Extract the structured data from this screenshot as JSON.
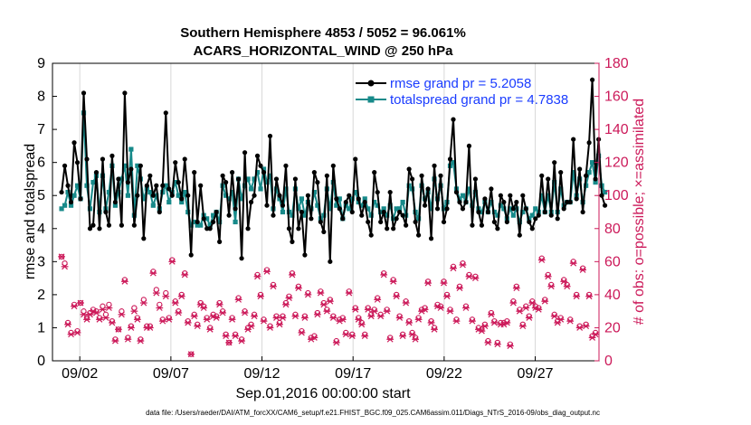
{
  "chart_data": {
    "type": "line",
    "title_line1": "Southern Hemisphere 4853 / 5052 = 96.061%",
    "title_line2": "ACARS_HORIZONTAL_WIND @ 250 hPa",
    "xlabel": "Sep.01,2016 00:00:00 start",
    "ylabel_left": "rmse and totalspread",
    "ylabel_right": "# of obs: o=possible; ×=assimilated",
    "footnote": "data file: /Users/raeder/DAI/ATM_forcXX/CAM6_setup/f.e21.FHIST_BGC.f09_025.CAM6assim.011/Diags_NTrS_2016-09/obs_diag_output.nc",
    "xlim": [
      0.5,
      30.5
    ],
    "ylim_left": [
      0,
      9
    ],
    "ylim_right": [
      0,
      180
    ],
    "yticks_left": [
      "0",
      "1",
      "2",
      "3",
      "4",
      "5",
      "6",
      "7",
      "8",
      "9"
    ],
    "yticks_right": [
      "0",
      "20",
      "40",
      "60",
      "80",
      "100",
      "120",
      "140",
      "160",
      "180"
    ],
    "xtick_positions": [
      2,
      7,
      12,
      17,
      22,
      27
    ],
    "xtick_labels": [
      "09/02",
      "09/07",
      "09/12",
      "09/17",
      "09/22",
      "09/27"
    ],
    "colors": {
      "rmse": "#000000",
      "spread": "#178a8a",
      "obs": "#cc1a5a",
      "legend_text": "#1a3cff",
      "right_axis": "#cc1a5a"
    },
    "series": [
      {
        "name": "rmse",
        "legend": "rmse grand pr = 5.2058",
        "values": [
          5.1,
          5.9,
          5.3,
          4.8,
          6.6,
          6.0,
          4.9,
          8.1,
          6.1,
          4.0,
          4.1,
          5.7,
          4.0,
          6.1,
          4.5,
          4.1,
          6.2,
          4.8,
          5.5,
          4.1,
          8.1,
          5.4,
          5.8,
          4.1,
          5.0,
          5.9,
          3.7,
          5.3,
          5.6,
          5.0,
          5.3,
          4.5,
          5.3,
          7.5,
          5.2,
          5.0,
          6.0,
          5.4,
          4.9,
          6.1,
          5.0,
          3.2,
          5.7,
          4.2,
          5.3,
          4.3,
          4.0,
          4.0,
          4.2,
          4.5,
          3.6,
          5.6,
          5.4,
          4.4,
          5.7,
          4.6,
          5.5,
          3.1,
          6.3,
          4.0,
          4.8,
          5.0,
          6.2,
          5.9,
          5.7,
          4.7,
          6.8,
          4.4,
          5.5,
          5.0,
          4.7,
          5.9,
          4.0,
          3.6,
          5.5,
          4.0,
          4.5,
          3.2,
          5.0,
          4.3,
          5.7,
          5.4,
          4.2,
          3.9,
          5.6,
          3.0,
          5.9,
          4.9,
          4.6,
          4.3,
          4.8,
          5.0,
          4.5,
          6.1,
          4.9,
          4.4,
          4.8,
          4.2,
          3.8,
          5.7,
          5.1,
          4.2,
          4.5,
          4.0,
          5.1,
          4.0,
          4.3,
          4.5,
          4.4,
          4.1,
          5.8,
          5.5,
          4.2,
          3.8,
          5.6,
          4.7,
          5.2,
          3.7,
          5.9,
          4.6,
          5.6,
          4.2,
          4.6,
          6.1,
          7.3,
          5.1,
          4.8,
          4.6,
          4.8,
          6.5,
          4.1,
          5.5,
          4.5,
          4.1,
          4.9,
          4.5,
          5.2,
          4.2,
          4.0,
          5.0,
          4.8,
          4.2,
          5.0,
          4.6,
          4.8,
          3.8,
          5.0,
          4.6,
          4.2,
          4.0,
          4.3,
          4.4,
          5.6,
          4.5,
          5.5,
          4.4,
          6.0,
          4.3,
          5.7,
          4.6,
          4.8,
          4.8,
          6.7,
          4.9,
          5.8,
          4.5,
          5.6,
          6.6,
          8.5,
          5.5,
          6.7,
          5.0,
          4.7
        ]
      },
      {
        "name": "totalspread",
        "legend": "totalspread grand pr = 4.7838",
        "values": [
          4.6,
          4.7,
          5.1,
          4.7,
          5.0,
          5.3,
          4.9,
          7.5,
          5.3,
          4.6,
          5.4,
          5.6,
          4.5,
          5.6,
          4.6,
          5.1,
          5.9,
          4.7,
          5.1,
          5.5,
          5.9,
          5.0,
          6.4,
          4.4,
          5.9,
          5.5,
          4.9,
          5.2,
          5.1,
          4.7,
          5.0,
          4.6,
          5.1,
          5.3,
          4.8,
          5.1,
          5.4,
          5.0,
          4.8,
          5.1,
          4.5,
          4.1,
          4.2,
          4.1,
          4.1,
          4.4,
          4.3,
          4.1,
          4.4,
          4.5,
          4.2,
          5.3,
          5.0,
          4.9,
          5.1,
          4.2,
          5.5,
          4.9,
          5.3,
          5.5,
          5.2,
          5.5,
          5.7,
          5.2,
          5.8,
          5.4,
          5.6,
          4.6,
          5.2,
          4.9,
          4.5,
          5.2,
          4.5,
          4.4,
          5.2,
          4.6,
          4.9,
          4.4,
          4.8,
          4.6,
          5.1,
          4.7,
          4.3,
          4.4,
          5.2,
          4.6,
          5.4,
          4.7,
          4.9,
          4.3,
          4.7,
          4.6,
          4.9,
          5.1,
          4.8,
          4.7,
          4.9,
          4.6,
          4.4,
          4.8,
          4.7,
          4.5,
          4.6,
          4.4,
          4.7,
          4.3,
          4.6,
          4.6,
          4.8,
          4.4,
          5.3,
          5.2,
          4.5,
          4.3,
          5.3,
          4.9,
          5.1,
          4.6,
          5.5,
          4.9,
          5.3,
          4.6,
          4.8,
          5.9,
          6.0,
          5.2,
          4.9,
          5.0,
          4.8,
          5.2,
          4.7,
          5.1,
          4.6,
          4.5,
          4.8,
          4.5,
          4.8,
          4.5,
          4.4,
          4.7,
          4.6,
          4.3,
          4.6,
          4.4,
          4.6,
          4.2,
          4.5,
          4.6,
          4.3,
          4.4,
          4.6,
          4.5,
          5.0,
          4.5,
          5.0,
          4.5,
          5.4,
          4.5,
          5.2,
          4.7,
          4.8,
          4.8,
          5.7,
          5.0,
          5.5,
          4.8,
          5.3,
          5.7,
          6.0,
          5.4,
          6.2,
          5.3,
          5.1
        ]
      }
    ],
    "obs_possible": [
      63,
      59,
      23,
      17,
      34,
      18,
      35,
      30,
      26,
      29,
      31,
      30,
      26,
      33,
      28,
      34,
      24,
      13,
      19,
      30,
      49,
      14,
      21,
      32,
      26,
      13,
      37,
      21,
      21,
      54,
      43,
      34,
      25,
      41,
      26,
      61,
      36,
      30,
      40,
      53,
      24,
      4,
      28,
      22,
      35,
      33,
      26,
      20,
      28,
      27,
      35,
      30,
      16,
      11,
      26,
      16,
      38,
      13,
      30,
      20,
      22,
      28,
      52,
      40,
      25,
      55,
      21,
      46,
      27,
      23,
      27,
      35,
      39,
      53,
      28,
      45,
      18,
      27,
      41,
      14,
      15,
      29,
      42,
      35,
      31,
      37,
      27,
      12,
      25,
      26,
      17,
      42,
      16,
      32,
      26,
      23,
      16,
      32,
      28,
      31,
      38,
      28,
      53,
      31,
      14,
      49,
      40,
      27,
      16,
      36,
      24,
      17,
      14,
      26,
      31,
      32,
      48,
      24,
      20,
      34,
      33,
      48,
      40,
      31,
      57,
      25,
      45,
      59,
      33,
      52,
      25,
      51,
      20,
      19,
      22,
      12,
      29,
      24,
      11,
      23,
      23,
      24,
      10,
      36,
      45,
      31,
      22,
      33,
      27,
      36,
      33,
      32,
      62,
      37,
      52,
      46,
      28,
      24,
      26,
      49,
      46,
      25,
      60,
      40,
      21,
      56,
      22,
      40,
      15,
      17
    ],
    "obs_assimilated": [
      63,
      57,
      22,
      16,
      33,
      17,
      35,
      28,
      25,
      28,
      30,
      29,
      25,
      31,
      26,
      32,
      23,
      12,
      19,
      28,
      48,
      13,
      20,
      30,
      25,
      12,
      35,
      20,
      20,
      53,
      41,
      32,
      24,
      39,
      25,
      60,
      35,
      29,
      39,
      52,
      23,
      4,
      27,
      21,
      34,
      32,
      25,
      19,
      27,
      26,
      34,
      29,
      15,
      11,
      25,
      15,
      37,
      12,
      29,
      19,
      21,
      27,
      51,
      39,
      24,
      54,
      20,
      45,
      26,
      22,
      26,
      34,
      38,
      52,
      27,
      44,
      17,
      26,
      40,
      13,
      14,
      28,
      41,
      34,
      30,
      36,
      26,
      11,
      24,
      25,
      16,
      41,
      15,
      31,
      25,
      22,
      15,
      31,
      27,
      30,
      37,
      27,
      52,
      30,
      13,
      48,
      39,
      26,
      15,
      35,
      23,
      16,
      13,
      25,
      30,
      31,
      47,
      23,
      19,
      33,
      32,
      47,
      39,
      30,
      56,
      24,
      44,
      58,
      32,
      51,
      24,
      50,
      19,
      18,
      21,
      11,
      28,
      23,
      10,
      22,
      22,
      23,
      9,
      35,
      44,
      30,
      21,
      32,
      26,
      35,
      32,
      31,
      61,
      36,
      51,
      45,
      27,
      23,
      25,
      48,
      45,
      24,
      59,
      39,
      20,
      55,
      21,
      39,
      14,
      16
    ]
  }
}
